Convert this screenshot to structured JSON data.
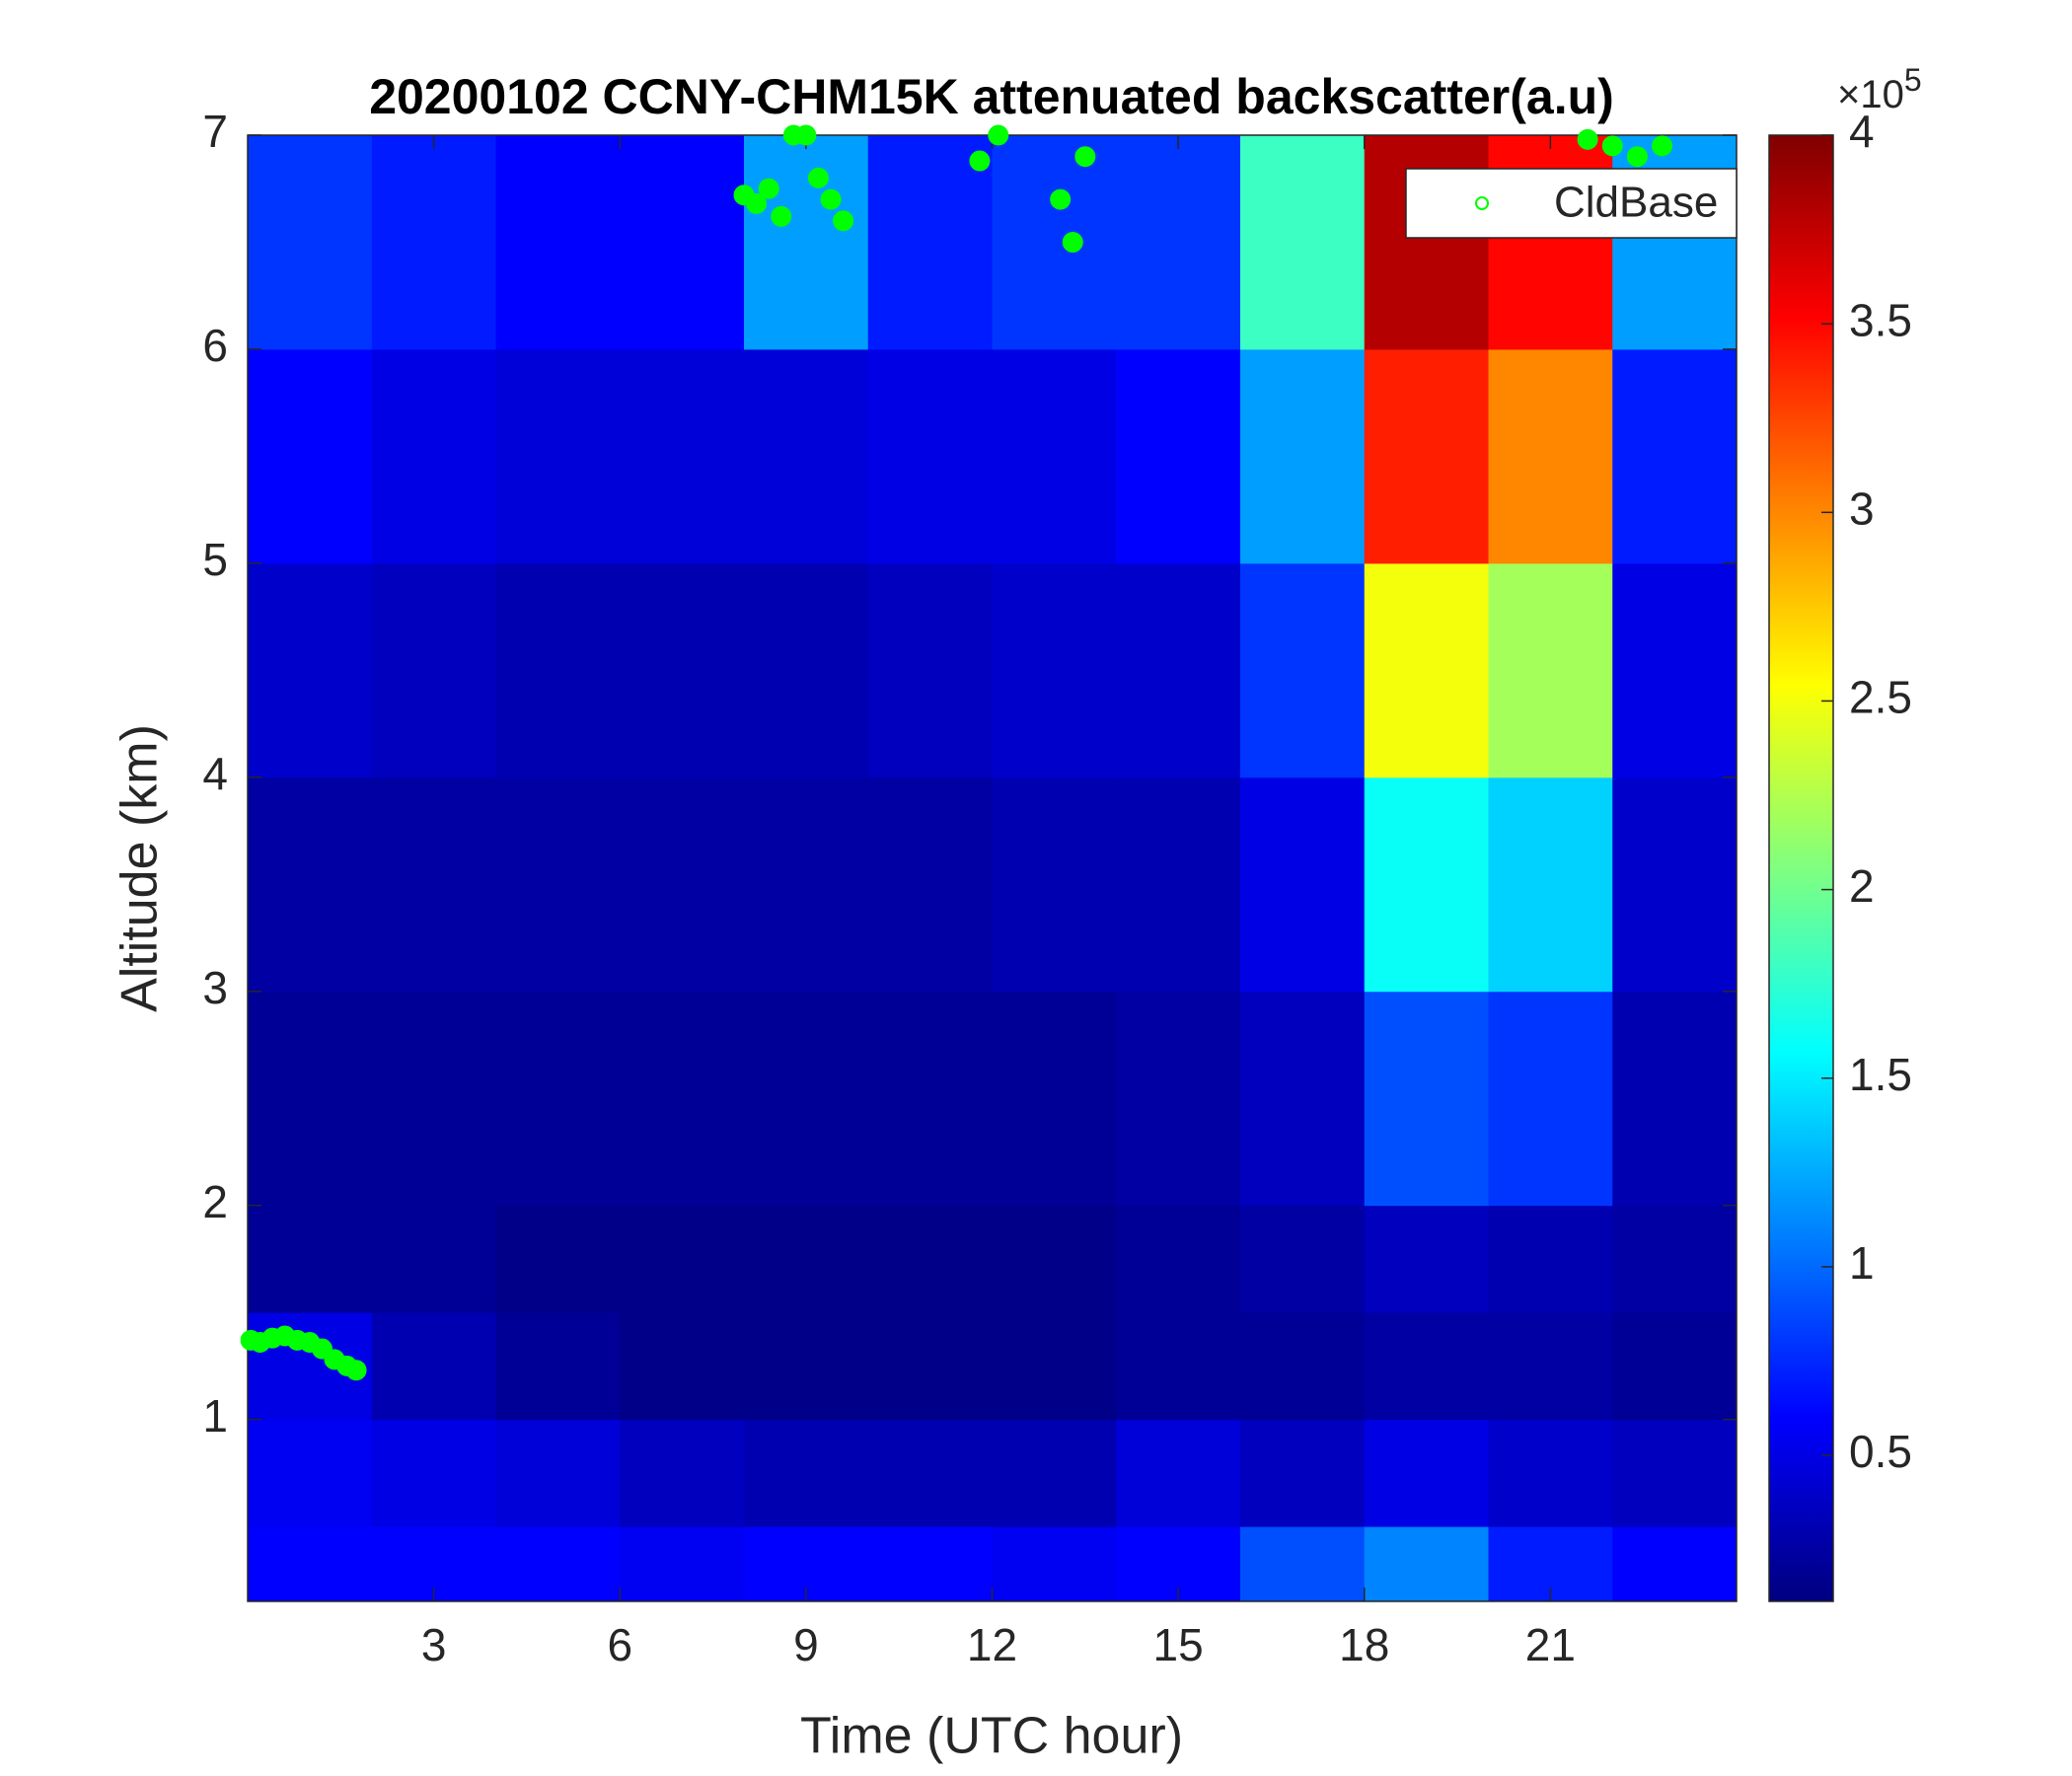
{
  "chart_data": {
    "type": "heatmap",
    "title": "20200102 CCNY-CHM15K attenuated backscatter(a.u)",
    "x_label": "Time (UTC hour)",
    "y_label": "Altitude (km)",
    "xlim": [
      0,
      24
    ],
    "ylim": [
      0.15,
      7
    ],
    "xticks": [
      3,
      6,
      9,
      12,
      15,
      18,
      21
    ],
    "yticks": [
      1,
      2,
      3,
      4,
      5,
      6,
      7
    ],
    "colormap": "jet",
    "clim": [
      0.113,
      4
    ],
    "colorbar_ticks": [
      0.5,
      1,
      1.5,
      2,
      2.5,
      3,
      3.5,
      4
    ],
    "colorbar_scale": {
      "base": "×10",
      "exponent": 5
    },
    "x_edges": [
      0,
      2,
      4,
      6,
      8,
      10,
      12,
      14,
      16,
      18,
      20,
      22,
      24
    ],
    "y_edges": [
      0.15,
      0.5,
      1,
      1.5,
      2,
      3,
      4,
      5,
      6,
      7
    ],
    "values": [
      [
        0.6,
        0.6,
        0.6,
        0.55,
        0.6,
        0.6,
        0.55,
        0.6,
        0.9,
        1.1,
        0.7,
        0.6
      ],
      [
        0.55,
        0.5,
        0.45,
        0.35,
        0.3,
        0.3,
        0.3,
        0.45,
        0.35,
        0.5,
        0.4,
        0.35
      ],
      [
        0.5,
        0.3,
        0.2,
        0.15,
        0.15,
        0.15,
        0.15,
        0.2,
        0.2,
        0.25,
        0.25,
        0.2
      ],
      [
        0.2,
        0.2,
        0.15,
        0.15,
        0.15,
        0.15,
        0.15,
        0.2,
        0.25,
        0.35,
        0.3,
        0.25
      ],
      [
        0.2,
        0.2,
        0.2,
        0.2,
        0.2,
        0.2,
        0.2,
        0.25,
        0.35,
        0.9,
        0.8,
        0.3
      ],
      [
        0.25,
        0.25,
        0.25,
        0.25,
        0.25,
        0.25,
        0.3,
        0.3,
        0.5,
        1.6,
        1.4,
        0.4
      ],
      [
        0.4,
        0.35,
        0.3,
        0.3,
        0.3,
        0.35,
        0.4,
        0.4,
        0.8,
        2.5,
        2.2,
        0.5
      ],
      [
        0.6,
        0.5,
        0.45,
        0.45,
        0.45,
        0.5,
        0.5,
        0.6,
        1.2,
        3.4,
        3.0,
        0.7
      ],
      [
        0.8,
        0.7,
        0.6,
        0.6,
        1.2,
        0.7,
        0.8,
        0.8,
        1.8,
        3.8,
        3.5,
        1.2
      ]
    ],
    "series": [
      {
        "name": "CldBase",
        "color": "#00ff00",
        "x": [
          0.05,
          0.2,
          0.4,
          0.6,
          0.8,
          1.0,
          1.2,
          1.4,
          1.6,
          1.75,
          8.0,
          8.2,
          8.4,
          8.6,
          8.8,
          9.0,
          9.2,
          9.4,
          9.6,
          11.8,
          12.1,
          13.1,
          13.3,
          13.5,
          21.6,
          22.0,
          22.4,
          22.8
        ],
        "values": [
          1.37,
          1.36,
          1.38,
          1.39,
          1.37,
          1.36,
          1.33,
          1.28,
          1.25,
          1.23,
          6.72,
          6.68,
          6.75,
          6.62,
          7.0,
          7.0,
          6.8,
          6.7,
          6.6,
          6.88,
          7.0,
          6.7,
          6.5,
          6.9,
          6.98,
          6.95,
          6.9,
          6.95
        ]
      }
    ],
    "legend": "upper right"
  }
}
